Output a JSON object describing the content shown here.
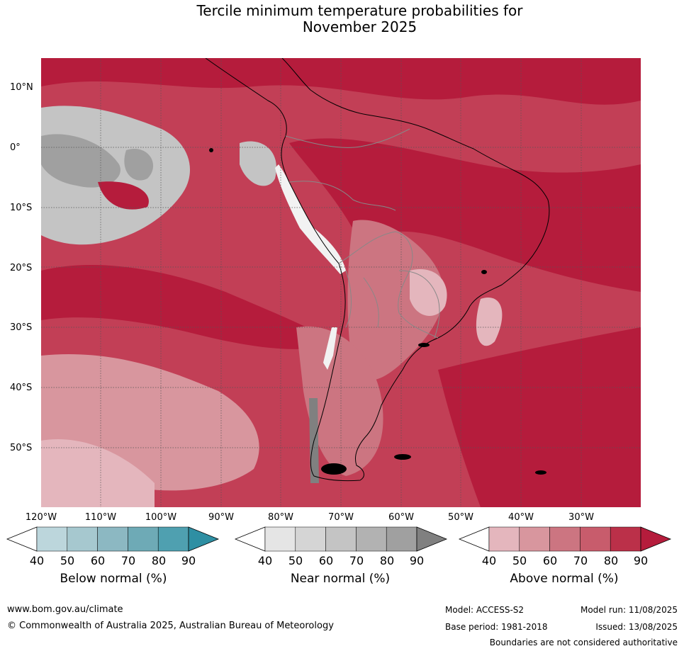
{
  "title_line1": "Tercile minimum temperature probabilities for",
  "title_line2": "November 2025",
  "lat_labels": [
    "10°N",
    "0°",
    "10°S",
    "20°S",
    "30°S",
    "40°S",
    "50°S"
  ],
  "lon_labels": [
    "120°W",
    "110°W",
    "100°W",
    "90°W",
    "80°W",
    "70°W",
    "60°W",
    "50°W",
    "40°W",
    "30°W"
  ],
  "legends": [
    {
      "title": "Below normal (%)",
      "ticks": [
        "40",
        "50",
        "60",
        "70",
        "80",
        "90"
      ],
      "colors": [
        "#bcd6dc",
        "#a6c8cf",
        "#8cb8c2",
        "#6eaab6",
        "#4fa0b0",
        "#2e8fa3"
      ]
    },
    {
      "title": "Near normal (%)",
      "ticks": [
        "40",
        "50",
        "60",
        "70",
        "80",
        "90"
      ],
      "colors": [
        "#e5e5e5",
        "#d5d5d5",
        "#c4c4c4",
        "#b2b2b2",
        "#a0a0a0",
        "#808080"
      ]
    },
    {
      "title": "Above normal (%)",
      "ticks": [
        "40",
        "50",
        "60",
        "70",
        "80",
        "90"
      ],
      "colors": [
        "#e4b6bd",
        "#d8969e",
        "#cc7581",
        "#c85c6c",
        "#bb3049",
        "#b51c3c"
      ]
    }
  ],
  "footer": {
    "url": "www.bom.gov.au/climate",
    "copyright": "© Commonwealth of Australia 2025, Australian Bureau of Meteorology",
    "model": "Model: ACCESS-S2",
    "base_period": "Base period: 1981-2018",
    "model_run": "Model run: 11/08/2025",
    "issued": "Issued: 13/08/2025",
    "disclaimer": "Boundaries are not considered authoritative"
  }
}
